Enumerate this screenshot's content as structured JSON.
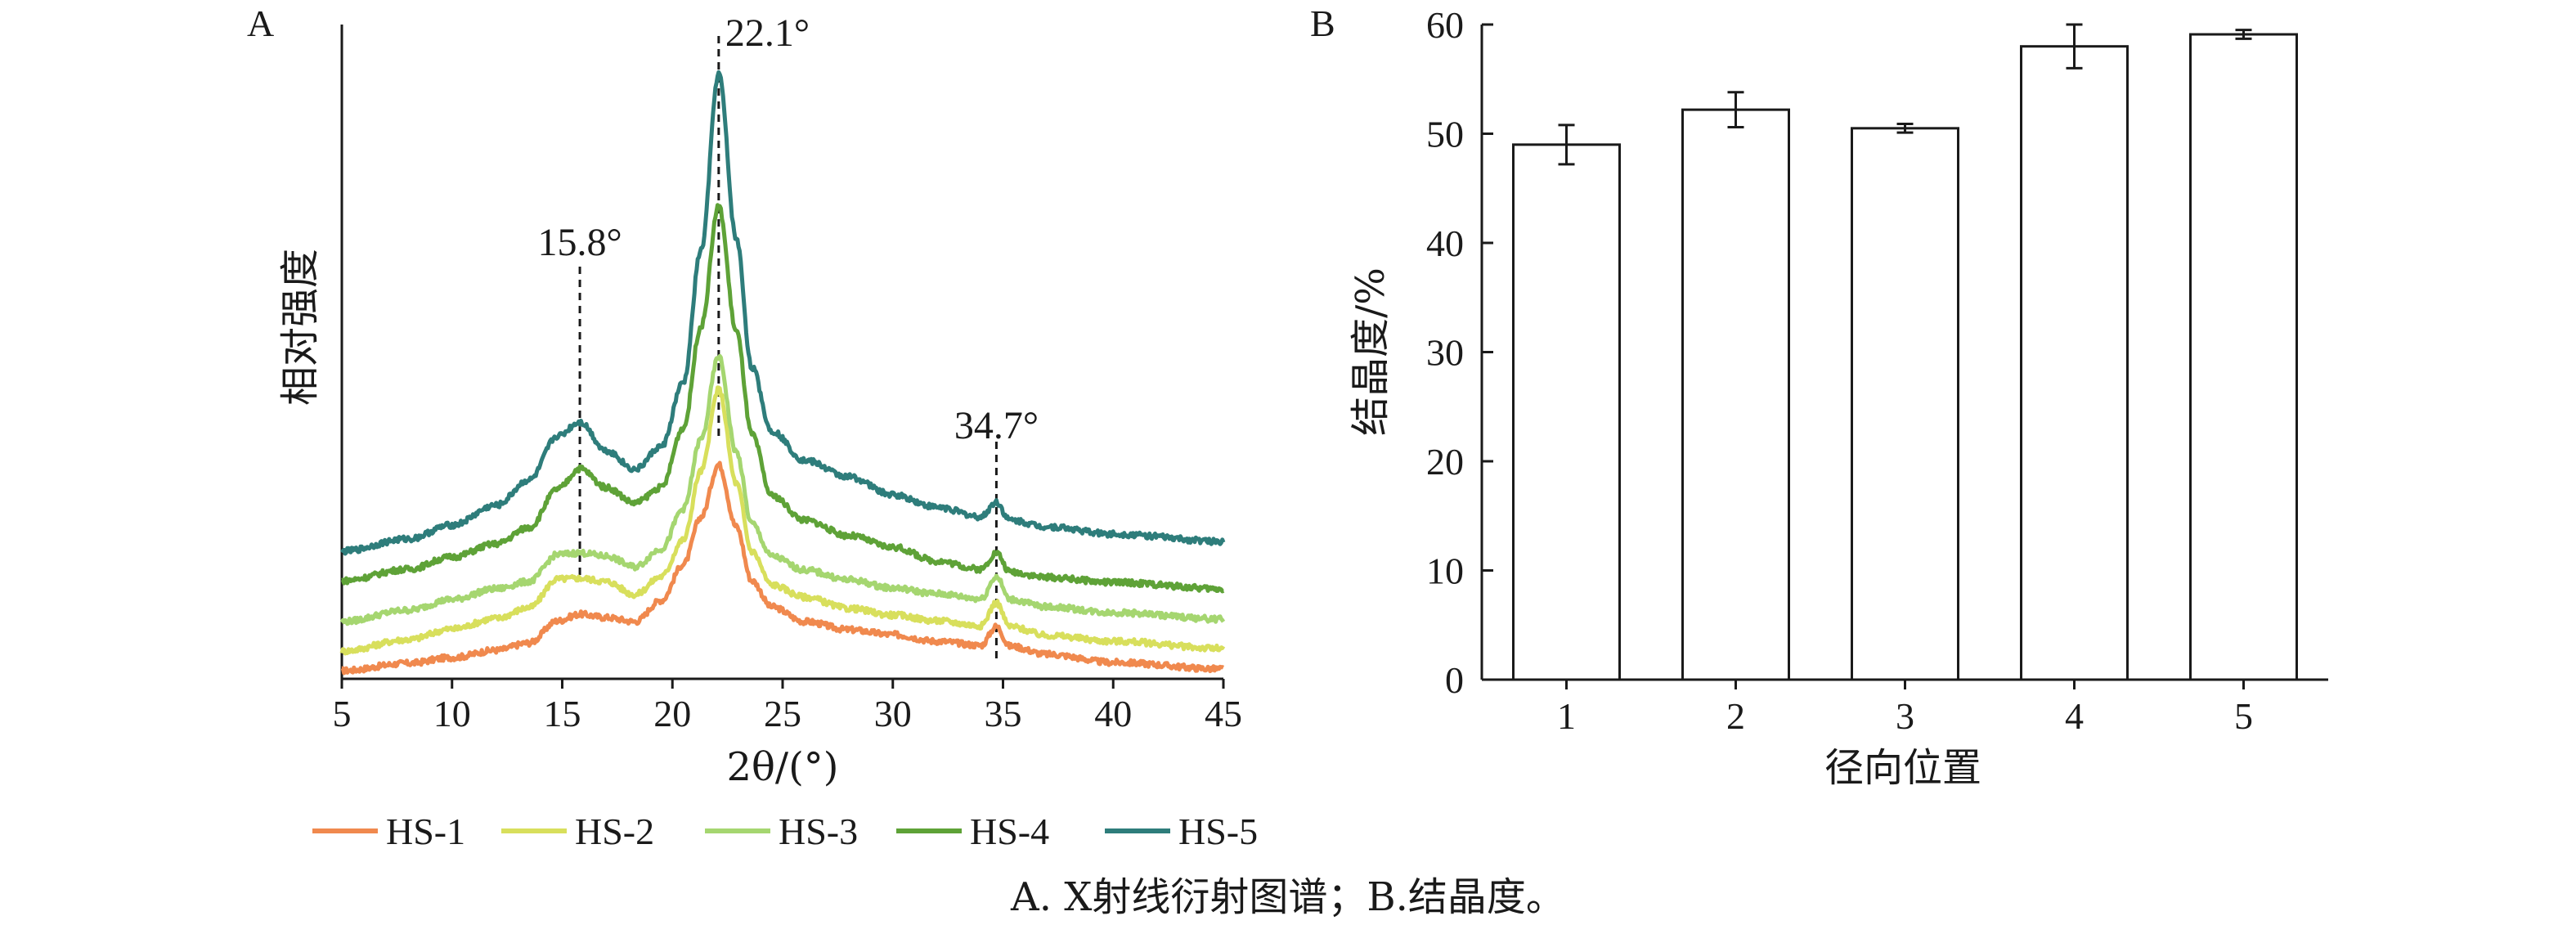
{
  "caption": "A. X射线衍射图谱；B.结晶度。",
  "chart_data": [
    {
      "panel": "A",
      "type": "line",
      "xlabel": "2θ/(°)",
      "ylabel": "相对强度",
      "xlim": [
        5,
        45
      ],
      "xticks": [
        5,
        10,
        15,
        20,
        25,
        30,
        35,
        40,
        45
      ],
      "x": [
        5,
        8,
        10,
        12,
        13.5,
        14.8,
        15.8,
        17,
        18.3,
        19.5,
        20.5,
        21.3,
        22.1,
        22.9,
        23.6,
        24.5,
        26,
        28,
        30,
        32,
        34,
        34.7,
        35.3,
        37,
        40,
        45
      ],
      "series": [
        {
          "name": "HS-1",
          "color": "#f0894e",
          "values": [
            2,
            11,
            18,
            27,
            36,
            63,
            71,
            67,
            62,
            88,
            132,
            190,
            254,
            178,
            112,
            80,
            62,
            52,
            46,
            38,
            33,
            56,
            32,
            22,
            12,
            4
          ]
        },
        {
          "name": "HS-2",
          "color": "#d8df5c",
          "values": [
            26,
            40,
            53,
            66,
            79,
            114,
            115,
            111,
            95,
            117,
            162,
            246,
            346,
            231,
            148,
            107,
            92,
            78,
            70,
            63,
            57,
            85,
            56,
            45,
            38,
            29
          ]
        },
        {
          "name": "HS-3",
          "color": "#a5d670",
          "values": [
            62,
            76,
            89,
            102,
            111,
            144,
            146,
            142,
            129,
            151,
            200,
            285,
            386,
            269,
            182,
            142,
            125,
            113,
            103,
            96,
            90,
            117,
            89,
            80,
            73,
            65
          ]
        },
        {
          "name": "HS-4",
          "color": "#5ea237",
          "values": [
            112,
            126,
            141,
            157,
            177,
            224,
            249,
            226,
            207,
            226,
            299,
            423,
            570,
            417,
            291,
            216,
            186,
            167,
            153,
            136,
            126,
            146,
            123,
            116,
            110,
            102
          ]
        },
        {
          "name": "HS-5",
          "color": "#2e7d7b",
          "values": [
            148,
            163,
            180,
            204,
            235,
            289,
            306,
            271,
            248,
            276,
            354,
            516,
            732,
            530,
            373,
            295,
            259,
            239,
            217,
            202,
            190,
            208,
            186,
            178,
            169,
            160
          ]
        }
      ],
      "annotations": [
        {
          "text": "15.8°",
          "x": 15.8
        },
        {
          "text": "22.1°",
          "x": 22.1
        },
        {
          "text": "34.7°",
          "x": 34.7
        }
      ],
      "legend": "bottom"
    },
    {
      "panel": "B",
      "type": "bar",
      "xlabel": "径向位置",
      "ylabel": "结晶度/%",
      "ylim": [
        0,
        60
      ],
      "yticks": [
        0,
        10,
        20,
        30,
        40,
        50,
        60
      ],
      "categories": [
        "1",
        "2",
        "3",
        "4",
        "5"
      ],
      "values": [
        49.0,
        52.2,
        50.5,
        58.0,
        59.1
      ],
      "errors": [
        1.8,
        1.6,
        0.4,
        2.0,
        0.4
      ]
    }
  ]
}
